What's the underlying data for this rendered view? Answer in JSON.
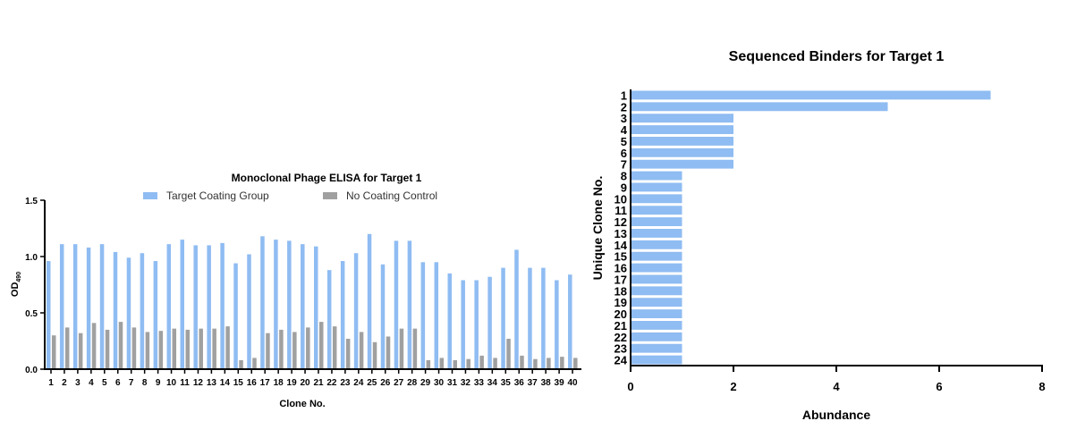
{
  "chart_data": [
    {
      "type": "bar",
      "title": "Monoclonal Phage ELISA for Target 1",
      "xlabel": "Clone No.",
      "ylabel": "OD",
      "ylabel_sub": "490",
      "ylim": [
        0,
        1.5
      ],
      "yticks": [
        "0.0",
        "0.5",
        "1.0",
        "1.5"
      ],
      "legend_position": "top",
      "categories": [
        "1",
        "2",
        "3",
        "4",
        "5",
        "6",
        "7",
        "8",
        "9",
        "10",
        "11",
        "12",
        "13",
        "14",
        "15",
        "16",
        "17",
        "18",
        "19",
        "20",
        "21",
        "22",
        "23",
        "24",
        "25",
        "26",
        "27",
        "28",
        "29",
        "30",
        "31",
        "32",
        "33",
        "34",
        "35",
        "36",
        "37",
        "38",
        "39",
        "40"
      ],
      "series": [
        {
          "name": "Target Coating Group",
          "color": "#8fbcf2",
          "values": [
            0.96,
            1.11,
            1.11,
            1.08,
            1.11,
            1.04,
            0.99,
            1.03,
            0.96,
            1.11,
            1.15,
            1.1,
            1.1,
            1.12,
            0.94,
            1.02,
            1.18,
            1.15,
            1.14,
            1.11,
            1.09,
            0.88,
            0.96,
            1.03,
            1.2,
            0.93,
            1.14,
            1.14,
            0.95,
            0.95,
            0.85,
            0.79,
            0.79,
            0.82,
            0.9,
            1.06,
            0.9,
            0.9,
            0.79,
            0.84
          ]
        },
        {
          "name": "No Coating Control",
          "color": "#a0a0a0",
          "values": [
            0.3,
            0.37,
            0.32,
            0.41,
            0.35,
            0.42,
            0.37,
            0.33,
            0.34,
            0.36,
            0.35,
            0.36,
            0.36,
            0.38,
            0.08,
            0.1,
            0.32,
            0.35,
            0.33,
            0.37,
            0.42,
            0.38,
            0.27,
            0.33,
            0.24,
            0.29,
            0.36,
            0.36,
            0.08,
            0.1,
            0.08,
            0.09,
            0.12,
            0.1,
            0.27,
            0.12,
            0.09,
            0.1,
            0.11,
            0.1
          ]
        }
      ]
    },
    {
      "type": "bar",
      "orientation": "horizontal",
      "title": "Sequenced Binders for Target 1",
      "xlabel": "Abundance",
      "ylabel": "Unique Clone No.",
      "xlim": [
        0,
        8
      ],
      "xticks": [
        "0",
        "2",
        "4",
        "6",
        "8"
      ],
      "color": "#8fbcf2",
      "categories": [
        "1",
        "2",
        "3",
        "4",
        "5",
        "6",
        "7",
        "8",
        "9",
        "10",
        "11",
        "12",
        "13",
        "14",
        "15",
        "16",
        "17",
        "18",
        "19",
        "20",
        "21",
        "22",
        "23",
        "24"
      ],
      "values": [
        7,
        5,
        2,
        2,
        2,
        2,
        2,
        1,
        1,
        1,
        1,
        1,
        1,
        1,
        1,
        1,
        1,
        1,
        1,
        1,
        1,
        1,
        1,
        1
      ]
    }
  ]
}
